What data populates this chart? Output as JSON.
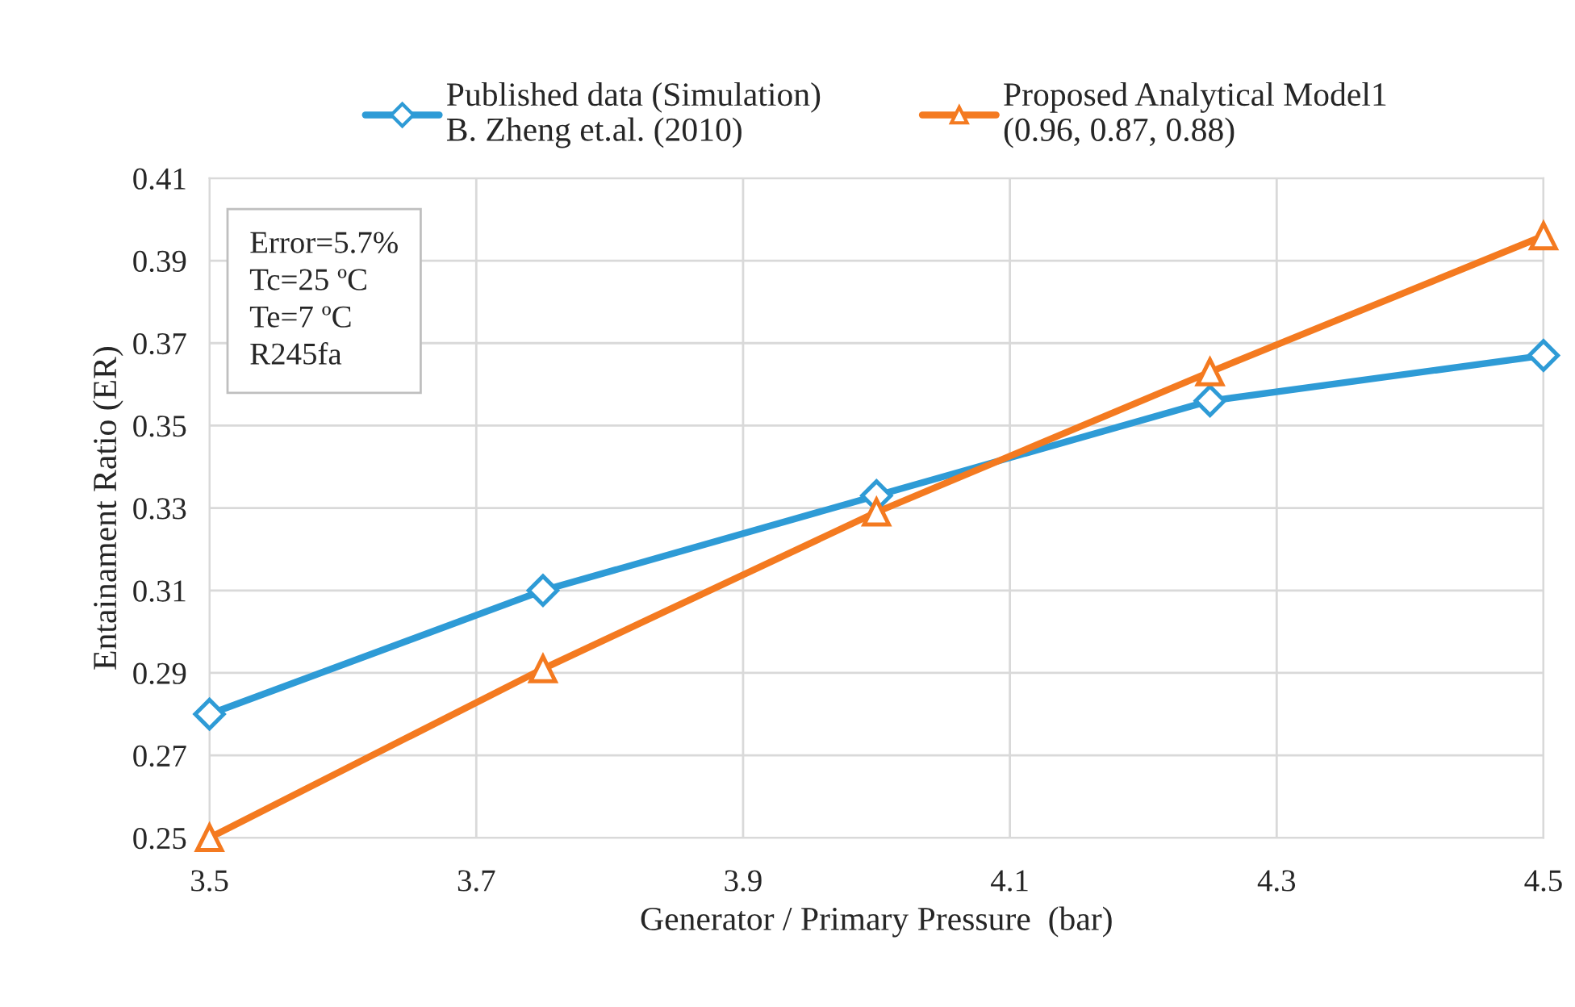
{
  "chart_data": {
    "type": "line",
    "xlabel": "Generator / Primary Pressure  (bar)",
    "ylabel": "Entainament Ratio (ER)",
    "x": [
      3.5,
      3.75,
      4.0,
      4.25,
      4.5
    ],
    "series": [
      {
        "name": "Published data (Simulation)\nB. Zheng et.al. (2010)",
        "color": "#2e9bd6",
        "marker": "diamond",
        "values": [
          0.28,
          0.31,
          0.333,
          0.356,
          0.367
        ]
      },
      {
        "name": "Proposed Analytical Model1\n(0.96, 0.87, 0.88)",
        "color": "#f47a20",
        "marker": "triangle",
        "values": [
          0.25,
          0.291,
          0.329,
          0.363,
          0.396
        ]
      }
    ],
    "xlim": [
      3.5,
      4.5
    ],
    "xticks": [
      3.5,
      3.7,
      3.9,
      4.1,
      4.3,
      4.5
    ],
    "ylim": [
      0.25,
      0.41
    ],
    "yticks": [
      0.25,
      0.27,
      0.29,
      0.31,
      0.33,
      0.35,
      0.37,
      0.39,
      0.41
    ],
    "grid": true,
    "legend": "top",
    "line_style": "solid",
    "annotations": [
      "Error=5.7%\nTc=25 ºC\nTe=7 ºC\nR245fa"
    ]
  }
}
